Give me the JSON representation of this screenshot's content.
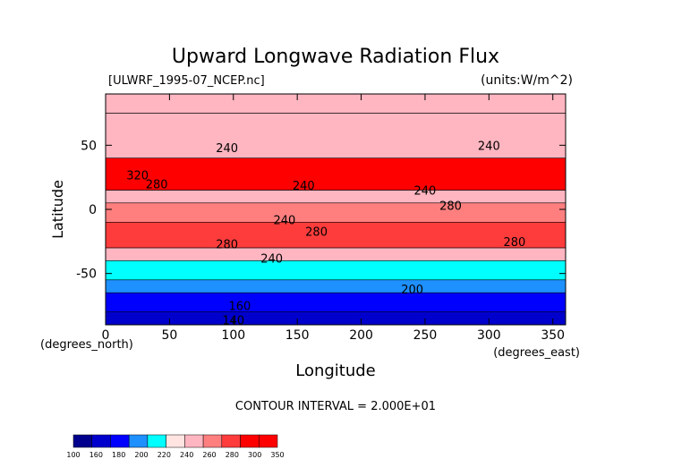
{
  "chart_data": {
    "type": "heatmap",
    "title": "Upward Longwave Radiation Flux",
    "file_label": "[ULWRF_1995-07_NCEP.nc]",
    "units_label": "(units:W/m^2)",
    "xlabel": "Longitude",
    "ylabel": "Latitude",
    "x_unit_label": "(degrees_east)",
    "y_unit_label": "(degrees_north)",
    "xlim": [
      0,
      360
    ],
    "ylim": [
      -90,
      90
    ],
    "x_ticks": [
      0,
      50,
      100,
      150,
      200,
      250,
      300,
      350
    ],
    "y_ticks": [
      -50,
      0,
      50
    ],
    "contour_interval_text": "CONTOUR INTERVAL = 2.000E+01",
    "colorbar": {
      "levels": [
        100,
        160,
        180,
        200,
        220,
        240,
        260,
        280,
        300,
        350
      ],
      "colors": [
        "#00008c",
        "#0000cd",
        "#0000ff",
        "#1e90ff",
        "#00ffff",
        "#ffe4e1",
        "#ffb6c1",
        "#ff7f7f",
        "#ff3c3c",
        "#ff0000",
        "#ff0000"
      ]
    },
    "zonal_bands": [
      {
        "lat_range": [
          75,
          90
        ],
        "value": 240
      },
      {
        "lat_range": [
          40,
          75
        ],
        "value": 250
      },
      {
        "lat_range": [
          15,
          40
        ],
        "value": 300
      },
      {
        "lat_range": [
          5,
          15
        ],
        "value": 240
      },
      {
        "lat_range": [
          -10,
          5
        ],
        "value": 260
      },
      {
        "lat_range": [
          -30,
          -10
        ],
        "value": 280
      },
      {
        "lat_range": [
          -40,
          -30
        ],
        "value": 240
      },
      {
        "lat_range": [
          -55,
          -40
        ],
        "value": 210
      },
      {
        "lat_range": [
          -65,
          -55
        ],
        "value": 190
      },
      {
        "lat_range": [
          -80,
          -65
        ],
        "value": 170
      },
      {
        "lat_range": [
          -90,
          -80
        ],
        "value": 150
      }
    ],
    "contour_labels": [
      {
        "text": "240",
        "lon": 95,
        "lat": 48
      },
      {
        "text": "320",
        "lon": 25,
        "lat": 27
      },
      {
        "text": "280",
        "lon": 40,
        "lat": 20
      },
      {
        "text": "240",
        "lon": 155,
        "lat": 19
      },
      {
        "text": "240",
        "lon": 140,
        "lat": -8
      },
      {
        "text": "280",
        "lon": 165,
        "lat": -17
      },
      {
        "text": "280",
        "lon": 95,
        "lat": -27
      },
      {
        "text": "240",
        "lon": 130,
        "lat": -38
      },
      {
        "text": "240",
        "lon": 250,
        "lat": 15
      },
      {
        "text": "280",
        "lon": 270,
        "lat": 3
      },
      {
        "text": "240",
        "lon": 300,
        "lat": 50
      },
      {
        "text": "280",
        "lon": 320,
        "lat": -25
      },
      {
        "text": "200",
        "lon": 240,
        "lat": -62
      },
      {
        "text": "160",
        "lon": 105,
        "lat": -75
      },
      {
        "text": "140",
        "lon": 100,
        "lat": -86
      }
    ]
  }
}
